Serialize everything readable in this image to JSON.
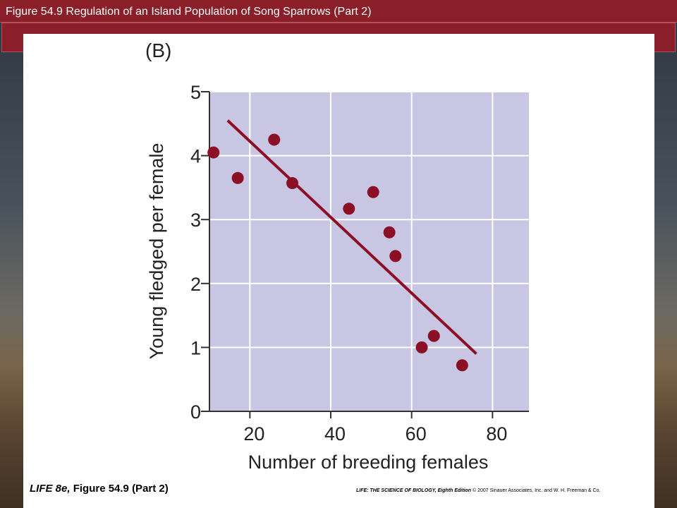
{
  "header": {
    "title": "Figure 54.9 Regulation of an Island Population of Song Sparrows (Part 2)"
  },
  "panel_label": "(B)",
  "footer": {
    "left_italic": "LIFE 8e,",
    "left_normal": " Figure 54.9 (Part 2)",
    "right_bold": "LIFE: THE SCIENCE OF BIOLOGY, Eighth Edition",
    "right_rest": "  © 2007 Sinauer Associates, Inc. and W. H. Freeman & Co."
  },
  "colors": {
    "plot_background": "#c8c6e2",
    "grid": "#ffffff",
    "points_and_line": "#8b1025",
    "title_bar": "#8a1f2a"
  },
  "chart_data": {
    "type": "scatter",
    "title": "",
    "xlabel": "Number of breeding females",
    "ylabel": "Young fledged per female",
    "xlim": [
      10,
      89
    ],
    "ylim": [
      0,
      5
    ],
    "xticks": [
      20,
      40,
      60,
      80
    ],
    "yticks": [
      0,
      1,
      2,
      3,
      4,
      5
    ],
    "grid": true,
    "points": [
      {
        "x": 11,
        "y": 4.05
      },
      {
        "x": 17,
        "y": 3.65
      },
      {
        "x": 26,
        "y": 4.25
      },
      {
        "x": 30.5,
        "y": 3.57
      },
      {
        "x": 44.5,
        "y": 3.17
      },
      {
        "x": 50.5,
        "y": 3.43
      },
      {
        "x": 54.5,
        "y": 2.8
      },
      {
        "x": 56,
        "y": 2.43
      },
      {
        "x": 62.5,
        "y": 1.0
      },
      {
        "x": 65.5,
        "y": 1.18
      },
      {
        "x": 72.5,
        "y": 0.72
      }
    ],
    "trend_line": {
      "x": [
        14.5,
        76
      ],
      "y": [
        4.55,
        0.9
      ]
    }
  }
}
